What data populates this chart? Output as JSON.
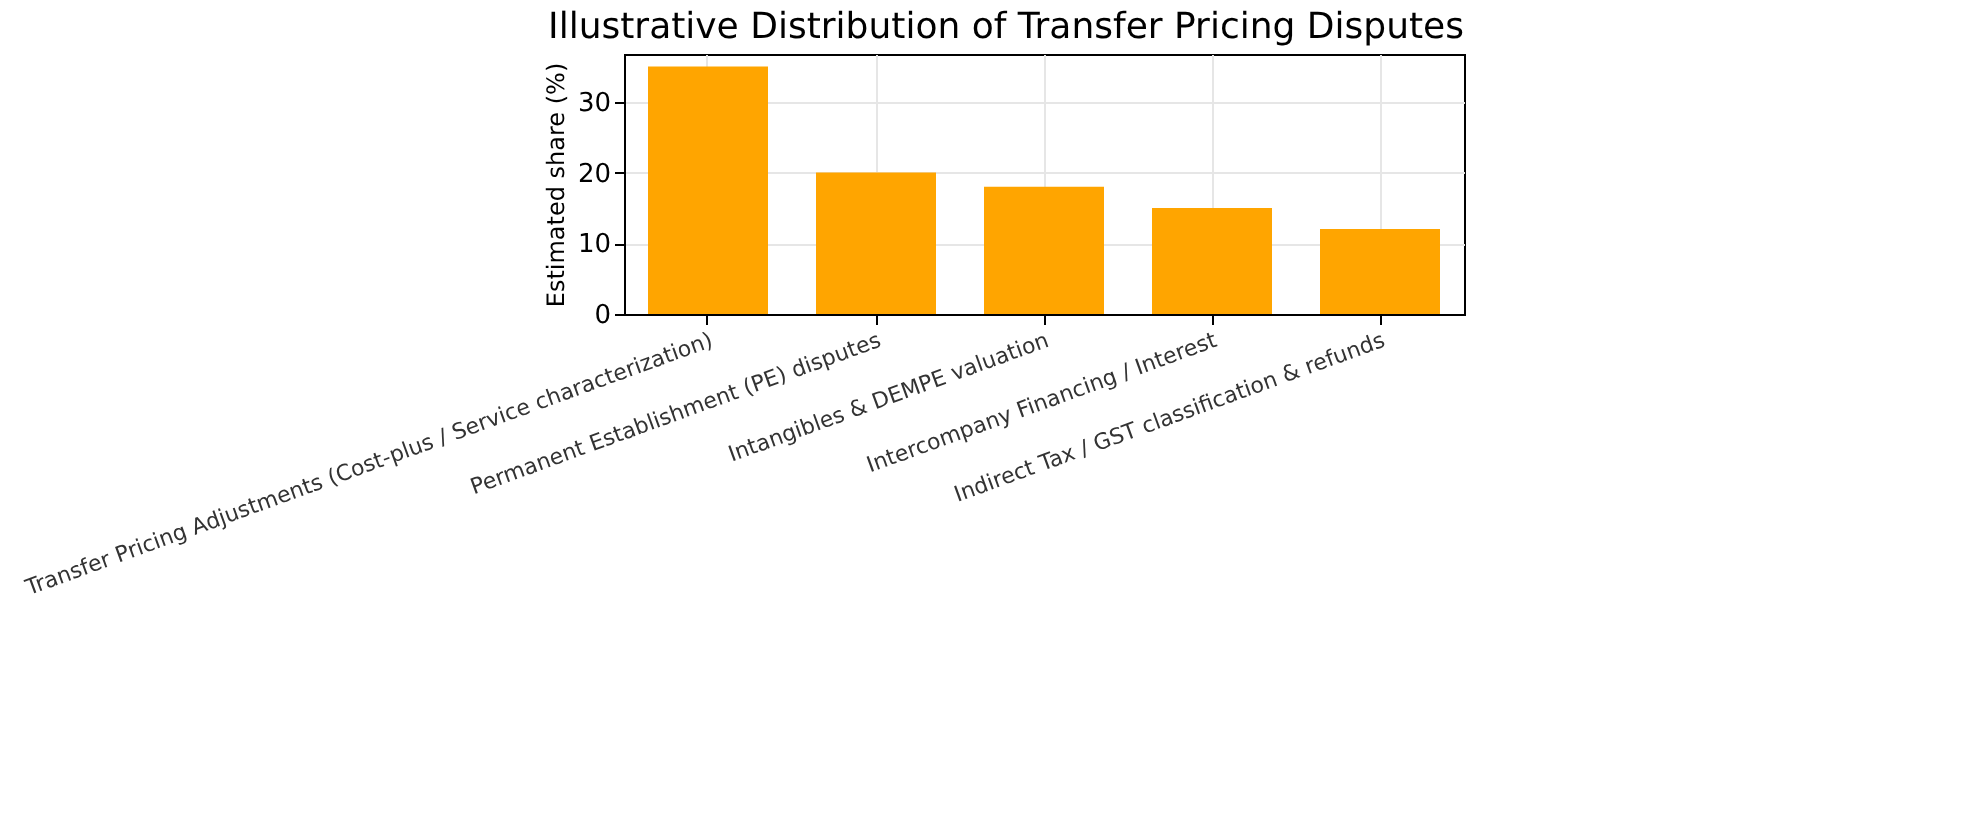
{
  "chart_data": {
    "type": "bar",
    "title": "Illustrative Distribution of Transfer Pricing Disputes",
    "ylabel": "Estimated share (%)",
    "categories": [
      "Transfer Pricing Adjustments (Cost-plus / Service characterization)",
      "Permanent Establishment (PE) disputes",
      "Intangibles & DEMPE valuation",
      "Intercompany Financing / Interest",
      "Indirect Tax / GST classification & refunds"
    ],
    "values": [
      35,
      20,
      18,
      15,
      12
    ],
    "color": "#ffa500",
    "ylim": [
      0,
      36.75
    ],
    "yticks": [
      0,
      10,
      20,
      30
    ],
    "grid": true
  }
}
